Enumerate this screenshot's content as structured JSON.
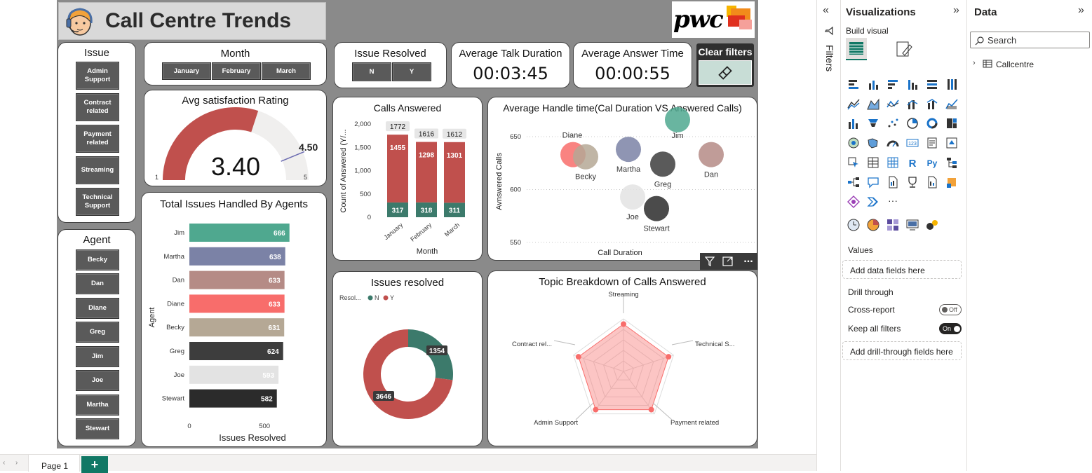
{
  "report": {
    "title": "Call Centre Trends",
    "logo_text": "pwc",
    "clear_filters_label": "Clear filters"
  },
  "issue_slicer": {
    "title": "Issue",
    "items": [
      "Admin Support",
      "Contract related",
      "Payment related",
      "Streaming",
      "Technical Support"
    ]
  },
  "agent_slicer": {
    "title": "Agent",
    "items": [
      "Becky",
      "Dan",
      "Diane",
      "Greg",
      "Jim",
      "Joe",
      "Martha",
      "Stewart"
    ]
  },
  "month_slicer": {
    "title": "Month",
    "items": [
      "January",
      "February",
      "March"
    ]
  },
  "resolved_slicer": {
    "title": "Issue Resolved",
    "items": [
      "N",
      "Y"
    ]
  },
  "kpis": {
    "talk": {
      "title": "Average Talk Duration",
      "value": "00:03:45"
    },
    "answer": {
      "title": "Average Answer Time",
      "value": "00:00:55"
    }
  },
  "gauge": {
    "title": "Avg satisfaction Rating",
    "value": 3.4,
    "value_label": "3.40",
    "min": 1,
    "max": 5,
    "target": 4.5,
    "min_label": "1",
    "max_label": "5",
    "target_label": "4.50",
    "fill_color": "#c0504d"
  },
  "chart_data": [
    {
      "type": "bar",
      "title": "Total Issues Handled By Agents",
      "xlabel": "Issues Resolved",
      "ylabel": "Agent",
      "categories": [
        "Jim",
        "Martha",
        "Dan",
        "Diane",
        "Becky",
        "Greg",
        "Joe",
        "Stewart"
      ],
      "values": [
        666,
        638,
        633,
        633,
        631,
        624,
        593,
        582
      ],
      "colors": [
        "#4fa88f",
        "#7b82a6",
        "#b58b86",
        "#f86d6b",
        "#b5a895",
        "#3d3d3d",
        "#e3e3e3",
        "#2b2b2b"
      ],
      "xticks": [
        "0",
        "500"
      ],
      "xlim": [
        0,
        700
      ]
    },
    {
      "type": "bar",
      "title": "Calls Answered",
      "xlabel": "Month",
      "ylabel": "Count of Answered (Y/...",
      "categories": [
        "January",
        "February",
        "March"
      ],
      "series": [
        {
          "name": "N",
          "values": [
            317,
            318,
            311
          ],
          "color": "#3c7a6b"
        },
        {
          "name": "Y",
          "values": [
            1455,
            1298,
            1301
          ],
          "color": "#c0504d"
        }
      ],
      "totals": [
        1772,
        1616,
        1612
      ],
      "ylim": [
        0,
        2000
      ],
      "yticks": [
        "0",
        "500",
        "1,000",
        "1,500",
        "2,000"
      ]
    },
    {
      "type": "scatter",
      "title": "Average Handle time(Cal Duration VS Answered Calls)",
      "xlabel": "Call Duration",
      "ylabel": "Avnswered Calls",
      "yticks": [
        "550",
        "600",
        "650"
      ],
      "ylim": [
        550,
        650
      ],
      "points": [
        {
          "label": "Diane",
          "y": 633,
          "color": "#f86d6b"
        },
        {
          "label": "Becky",
          "y": 631,
          "color": "#b5a895"
        },
        {
          "label": "Martha",
          "y": 638,
          "color": "#7b82a6"
        },
        {
          "label": "Jim",
          "y": 666,
          "color": "#4fa88f"
        },
        {
          "label": "Greg",
          "y": 624,
          "color": "#3d3d3d"
        },
        {
          "label": "Dan",
          "y": 633,
          "color": "#b58b86"
        },
        {
          "label": "Joe",
          "y": 593,
          "color": "#e3e3e3"
        },
        {
          "label": "Stewart",
          "y": 582,
          "color": "#2b2b2b"
        }
      ]
    },
    {
      "type": "pie",
      "title": "Issues resolved",
      "legend_title": "Resol...",
      "slices": [
        {
          "name": "N",
          "value": 1354,
          "label": "1354",
          "color": "#3c7a6b"
        },
        {
          "name": "Y",
          "value": 3646,
          "label": "3646",
          "color": "#c0504d"
        }
      ]
    },
    {
      "type": "radar",
      "title": "Topic Breakdown of Calls Answered",
      "axes": [
        "Streaming",
        "Technical S...",
        "Payment related",
        "Admin Support",
        "Contract rel..."
      ],
      "values": [
        0.9,
        0.9,
        0.9,
        0.9,
        0.9
      ],
      "color": "#f86d6b"
    }
  ],
  "visual_header": {
    "more_label": "..."
  },
  "filters_pane": {
    "label": "Filters"
  },
  "viz_pane": {
    "title": "Visualizations",
    "build_label": "Build visual",
    "values_label": "Values",
    "values_well": "Add data fields here",
    "drill_label": "Drill through",
    "cross_report_label": "Cross-report",
    "cross_report_state": "Off",
    "keep_filters_label": "Keep all filters",
    "keep_filters_state": "On",
    "drill_well": "Add drill-through fields here",
    "more_label": "..."
  },
  "data_pane": {
    "title": "Data",
    "search_placeholder": "Search",
    "table_name": "Callcentre"
  },
  "pages": {
    "current": "Page 1",
    "add_label": "+"
  }
}
